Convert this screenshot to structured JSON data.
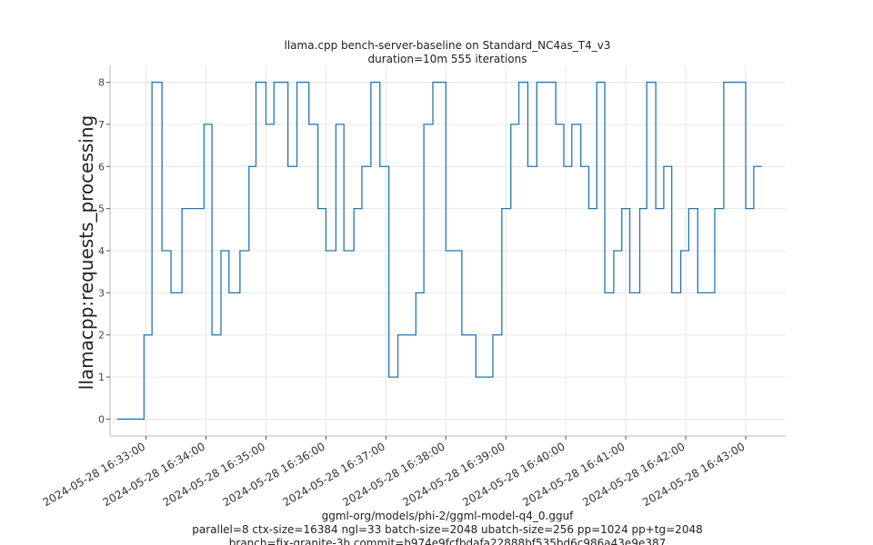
{
  "chart_data": {
    "type": "line",
    "title": "llama.cpp bench-server-baseline on Standard_NC4as_T4_v3",
    "subtitle": "duration=10m 555 iterations",
    "xlabel_lines": [
      "ggml-org/models/phi-2/ggml-model-q4_0.gguf",
      "parallel=8 ctx-size=16384 ngl=33 batch-size=2048 ubatch-size=256 pp=1024 pp+tg=2048",
      "branch=fix-granite-3b commit=b974e9fcfbdafa22888bf535bd6c986a43e9e387"
    ],
    "ylabel": "llamacpp:requests_processing",
    "ylim": [
      -0.4,
      8.4
    ],
    "yticks": [
      0,
      1,
      2,
      3,
      4,
      5,
      6,
      7,
      8
    ],
    "xlim": [
      "2024-05-28 16:32:24",
      "2024-05-28 16:43:40"
    ],
    "xticks": [
      "2024-05-28 16:33:00",
      "2024-05-28 16:34:00",
      "2024-05-28 16:35:00",
      "2024-05-28 16:36:00",
      "2024-05-28 16:37:00",
      "2024-05-28 16:38:00",
      "2024-05-28 16:39:00",
      "2024-05-28 16:40:00",
      "2024-05-28 16:41:00",
      "2024-05-28 16:42:00",
      "2024-05-28 16:43:00"
    ],
    "grid": true,
    "series_color": "#1f77b4",
    "x": [
      "2024-05-28 16:32:31",
      "2024-05-28 16:32:58",
      "2024-05-28 16:33:06",
      "2024-05-28 16:33:16",
      "2024-05-28 16:33:25",
      "2024-05-28 16:33:36",
      "2024-05-28 16:33:58",
      "2024-05-28 16:34:06",
      "2024-05-28 16:34:15",
      "2024-05-28 16:34:23",
      "2024-05-28 16:34:34",
      "2024-05-28 16:34:43",
      "2024-05-28 16:34:50",
      "2024-05-28 16:35:00",
      "2024-05-28 16:35:08",
      "2024-05-28 16:35:22",
      "2024-05-28 16:35:31",
      "2024-05-28 16:35:43",
      "2024-05-28 16:35:52",
      "2024-05-28 16:36:00",
      "2024-05-28 16:36:10",
      "2024-05-28 16:36:18",
      "2024-05-28 16:36:28",
      "2024-05-28 16:36:36",
      "2024-05-28 16:36:45",
      "2024-05-28 16:36:54",
      "2024-05-28 16:37:03",
      "2024-05-28 16:37:12",
      "2024-05-28 16:37:30",
      "2024-05-28 16:37:38",
      "2024-05-28 16:37:47",
      "2024-05-28 16:38:00",
      "2024-05-28 16:38:16",
      "2024-05-28 16:38:30",
      "2024-05-28 16:38:47",
      "2024-05-28 16:38:56",
      "2024-05-28 16:39:05",
      "2024-05-28 16:39:13",
      "2024-05-28 16:39:22",
      "2024-05-28 16:39:31",
      "2024-05-28 16:39:50",
      "2024-05-28 16:39:58",
      "2024-05-28 16:40:06",
      "2024-05-28 16:40:15",
      "2024-05-28 16:40:23",
      "2024-05-28 16:40:31",
      "2024-05-28 16:40:39",
      "2024-05-28 16:40:48",
      "2024-05-28 16:40:56",
      "2024-05-28 16:41:04",
      "2024-05-28 16:41:14",
      "2024-05-28 16:41:21",
      "2024-05-28 16:41:30",
      "2024-05-28 16:41:38",
      "2024-05-28 16:41:46",
      "2024-05-28 16:41:55",
      "2024-05-28 16:42:03",
      "2024-05-28 16:42:12",
      "2024-05-28 16:42:29",
      "2024-05-28 16:42:38",
      "2024-05-28 16:43:00",
      "2024-05-28 16:43:08"
    ],
    "y": [
      0,
      2,
      8,
      4,
      3,
      5,
      7,
      2,
      4,
      3,
      4,
      6,
      8,
      7,
      8,
      6,
      8,
      7,
      5,
      4,
      7,
      4,
      5,
      6,
      8,
      6,
      1,
      2,
      3,
      7,
      8,
      4,
      2,
      1,
      2,
      5,
      7,
      8,
      6,
      8,
      7,
      6,
      7,
      6,
      5,
      8,
      3,
      4,
      5,
      3,
      5,
      8,
      5,
      6,
      3,
      4,
      5,
      3,
      5,
      8,
      5,
      6
    ],
    "y_final_note": ""
  }
}
